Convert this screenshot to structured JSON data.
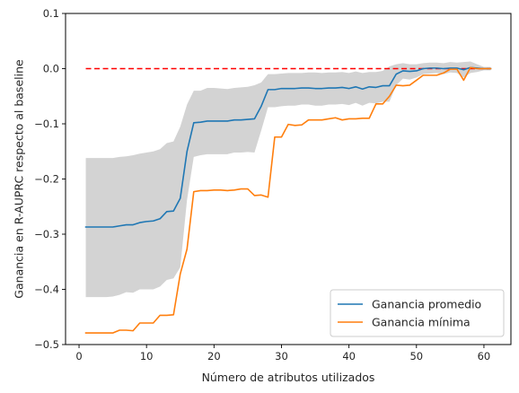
{
  "chart_data": {
    "type": "line",
    "title": "",
    "xlabel": "Número de atributos utilizados",
    "ylabel": "Ganancia en R-AUPRC respecto al baseline",
    "xlim": [
      -2.0,
      64.0
    ],
    "ylim": [
      -0.5,
      0.1
    ],
    "xticks": [
      0,
      10,
      20,
      30,
      40,
      50,
      60
    ],
    "yticks": [
      -0.5,
      -0.4,
      -0.3,
      -0.2,
      -0.1,
      0.0,
      0.1
    ],
    "grid": false,
    "legend_position": "lower-right",
    "x": [
      1,
      2,
      3,
      4,
      5,
      6,
      7,
      8,
      9,
      10,
      11,
      12,
      13,
      14,
      15,
      16,
      17,
      18,
      19,
      20,
      21,
      22,
      23,
      24,
      25,
      26,
      27,
      28,
      29,
      30,
      31,
      32,
      33,
      34,
      35,
      36,
      37,
      38,
      39,
      40,
      41,
      42,
      43,
      44,
      45,
      46,
      47,
      48,
      49,
      50,
      51,
      52,
      53,
      54,
      55,
      56,
      57,
      58,
      59,
      60,
      61
    ],
    "series": [
      {
        "name": "Ganancia promedio",
        "color": "#1f77b4",
        "values": [
          -0.287,
          -0.287,
          -0.287,
          -0.287,
          -0.287,
          -0.285,
          -0.283,
          -0.283,
          -0.279,
          -0.277,
          -0.276,
          -0.272,
          -0.259,
          -0.258,
          -0.235,
          -0.15,
          -0.098,
          -0.097,
          -0.095,
          -0.095,
          -0.095,
          -0.095,
          -0.093,
          -0.093,
          -0.092,
          -0.091,
          -0.068,
          -0.038,
          -0.038,
          -0.036,
          -0.036,
          -0.036,
          -0.035,
          -0.035,
          -0.036,
          -0.036,
          -0.035,
          -0.035,
          -0.034,
          -0.036,
          -0.033,
          -0.037,
          -0.033,
          -0.034,
          -0.031,
          -0.031,
          -0.01,
          -0.004,
          -0.005,
          -0.004,
          0.0,
          0.001,
          0.001,
          0.0,
          0.001,
          0.001,
          -0.002,
          0.002,
          0.001,
          0.0,
          0.0
        ]
      },
      {
        "name": "Ganancia mínima",
        "color": "#ff7f0e",
        "values": [
          -0.479,
          -0.479,
          -0.479,
          -0.479,
          -0.479,
          -0.474,
          -0.474,
          -0.475,
          -0.461,
          -0.461,
          -0.461,
          -0.447,
          -0.447,
          -0.446,
          -0.372,
          -0.327,
          -0.223,
          -0.221,
          -0.221,
          -0.22,
          -0.22,
          -0.221,
          -0.22,
          -0.218,
          -0.218,
          -0.23,
          -0.229,
          -0.233,
          -0.124,
          -0.124,
          -0.101,
          -0.103,
          -0.102,
          -0.093,
          -0.093,
          -0.093,
          -0.091,
          -0.089,
          -0.093,
          -0.091,
          -0.091,
          -0.09,
          -0.09,
          -0.064,
          -0.064,
          -0.05,
          -0.03,
          -0.031,
          -0.03,
          -0.021,
          -0.012,
          -0.012,
          -0.012,
          -0.008,
          -0.001,
          -0.001,
          -0.021,
          0.002,
          0.0,
          0.0,
          0.0
        ]
      }
    ],
    "band": {
      "color": "#d3d3d3",
      "upper": [
        -0.162,
        -0.162,
        -0.162,
        -0.162,
        -0.162,
        -0.16,
        -0.159,
        -0.157,
        -0.154,
        -0.152,
        -0.15,
        -0.146,
        -0.135,
        -0.132,
        -0.105,
        -0.065,
        -0.04,
        -0.04,
        -0.035,
        -0.035,
        -0.036,
        -0.037,
        -0.035,
        -0.034,
        -0.033,
        -0.03,
        -0.025,
        -0.01,
        -0.01,
        -0.009,
        -0.008,
        -0.008,
        -0.008,
        -0.007,
        -0.007,
        -0.008,
        -0.007,
        -0.007,
        -0.006,
        -0.008,
        -0.005,
        -0.008,
        -0.006,
        -0.006,
        -0.004,
        0.004,
        0.008,
        0.01,
        0.008,
        0.008,
        0.01,
        0.011,
        0.011,
        0.01,
        0.012,
        0.011,
        0.012,
        0.013,
        0.008,
        0.003,
        0.003
      ],
      "lower": [
        -0.414,
        -0.414,
        -0.414,
        -0.414,
        -0.413,
        -0.41,
        -0.405,
        -0.406,
        -0.4,
        -0.4,
        -0.4,
        -0.395,
        -0.383,
        -0.38,
        -0.36,
        -0.238,
        -0.16,
        -0.157,
        -0.155,
        -0.155,
        -0.155,
        -0.155,
        -0.152,
        -0.152,
        -0.151,
        -0.152,
        -0.112,
        -0.07,
        -0.07,
        -0.068,
        -0.067,
        -0.067,
        -0.065,
        -0.065,
        -0.067,
        -0.067,
        -0.065,
        -0.065,
        -0.064,
        -0.066,
        -0.062,
        -0.067,
        -0.062,
        -0.063,
        -0.06,
        -0.06,
        -0.03,
        -0.018,
        -0.02,
        -0.016,
        -0.01,
        -0.009,
        -0.008,
        -0.01,
        -0.007,
        -0.008,
        -0.016,
        -0.008,
        -0.006,
        -0.003,
        -0.003
      ]
    },
    "baseline": {
      "color": "#ff0000",
      "style": "dashed",
      "x": [
        1,
        61
      ],
      "y": 0.0
    }
  }
}
